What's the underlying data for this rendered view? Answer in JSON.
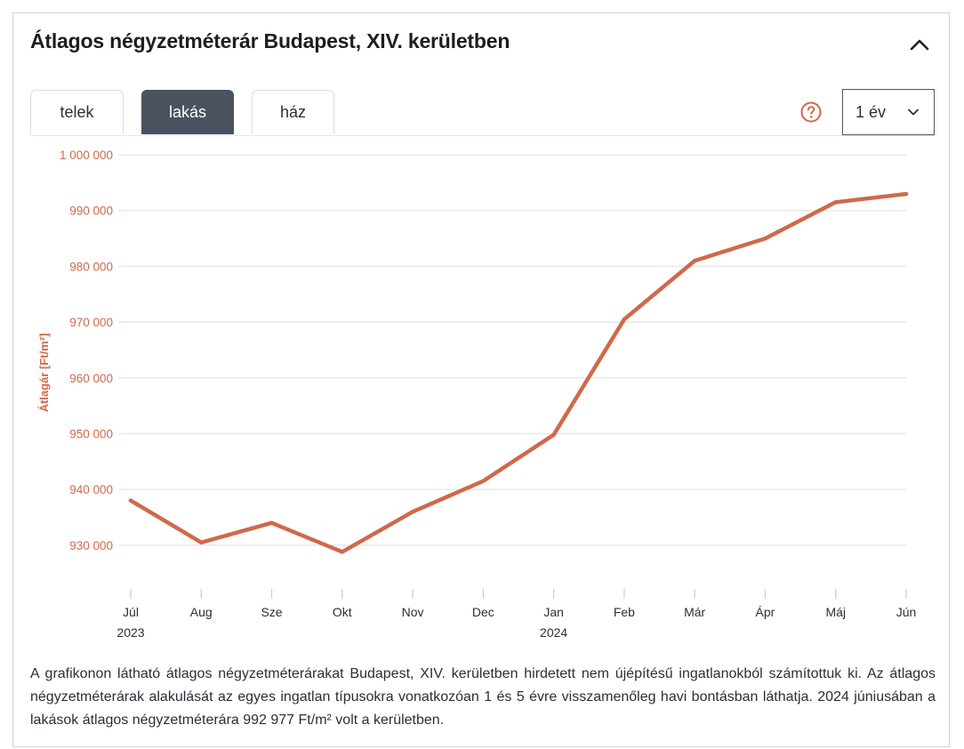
{
  "header": {
    "title": "Átlagos négyzetméterár Budapest, XIV. kerületben"
  },
  "tabs": [
    {
      "label": "telek",
      "active": false
    },
    {
      "label": "lakás",
      "active": true
    },
    {
      "label": "ház",
      "active": false
    }
  ],
  "controls": {
    "help_icon": "question-circle-icon",
    "period_label": "1 év",
    "period_icon": "chevron-down-icon",
    "collapse_icon": "chevron-up-icon"
  },
  "colors": {
    "accent": "#d0694a",
    "tab_active": "#4a5260",
    "grid": "#e6e8eb"
  },
  "chart_data": {
    "type": "line",
    "ylabel": "Átlagár [Ft/m²]",
    "xlabel": "",
    "categories": [
      "Júl",
      "Aug",
      "Sze",
      "Okt",
      "Nov",
      "Dec",
      "Jan",
      "Feb",
      "Már",
      "Ápr",
      "Máj",
      "Jún"
    ],
    "category_years": [
      "2023",
      "",
      "",
      "",
      "",
      "",
      "2024",
      "",
      "",
      "",
      "",
      ""
    ],
    "series": [
      {
        "values": [
          938000,
          930500,
          934000,
          928800,
          936000,
          941500,
          949800,
          970500,
          981000,
          985000,
          991500,
          992977
        ]
      }
    ],
    "y_ticks": [
      {
        "value": 1000000,
        "label": "1 000 000"
      },
      {
        "value": 990000,
        "label": "990 000"
      },
      {
        "value": 980000,
        "label": "980 000"
      },
      {
        "value": 970000,
        "label": "970 000"
      },
      {
        "value": 960000,
        "label": "960 000"
      },
      {
        "value": 950000,
        "label": "950 000"
      },
      {
        "value": 940000,
        "label": "940 000"
      },
      {
        "value": 930000,
        "label": "930 000"
      }
    ],
    "ylim": [
      923000,
      1000000
    ],
    "grid": true,
    "legend": "none"
  },
  "description": "A grafikonon látható átlagos négyzetméterárakat Budapest, XIV. kerületben hirdetett nem újépítésű ingatlanokból számítottuk ki. Az átlagos négyzetméterárak alakulását az egyes ingatlan típusokra vonatkozóan 1 és 5 évre visszamenőleg havi bontásban láthatja. 2024 júniusában a lakások átlagos négyzetméterára 992 977 Ft/m² volt a kerületben."
}
